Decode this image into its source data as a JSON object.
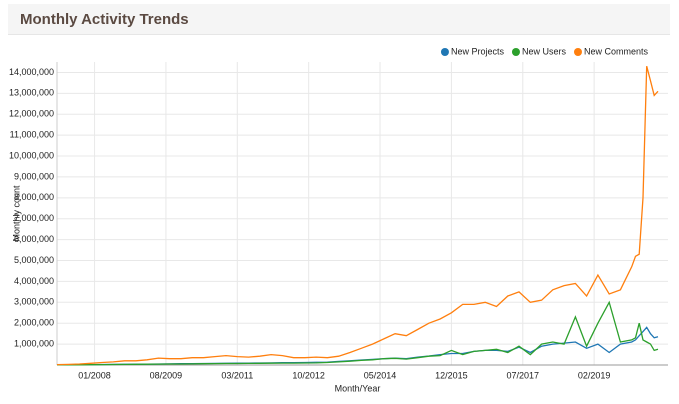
{
  "chart_data": {
    "type": "line",
    "title": "Monthly Activity Trends",
    "x_label": "Month/Year",
    "y_label": "Monthly count",
    "grid": true,
    "legend": "top-right",
    "x": [
      "03/2007",
      "06/2007",
      "09/2007",
      "12/2007",
      "03/2008",
      "06/2008",
      "09/2008",
      "12/2008",
      "03/2009",
      "06/2009",
      "09/2009",
      "12/2009",
      "03/2010",
      "06/2010",
      "09/2010",
      "12/2010",
      "03/2011",
      "06/2011",
      "09/2011",
      "12/2011",
      "03/2012",
      "06/2012",
      "09/2012",
      "12/2012",
      "03/2013",
      "06/2013",
      "09/2013",
      "12/2013",
      "03/2014",
      "06/2014",
      "09/2014",
      "12/2014",
      "03/2015",
      "06/2015",
      "09/2015",
      "12/2015",
      "03/2016",
      "06/2016",
      "09/2016",
      "12/2016",
      "03/2017",
      "06/2017",
      "09/2017",
      "12/2017",
      "03/2018",
      "06/2018",
      "09/2018",
      "12/2018",
      "03/2019",
      "06/2019",
      "09/2019",
      "12/2019",
      "01/2020",
      "02/2020",
      "03/2020",
      "04/2020",
      "05/2020",
      "06/2020",
      "07/2020"
    ],
    "xlim": [
      "03/2007",
      "07/2020"
    ],
    "xticks": [
      "01/2008",
      "08/2009",
      "03/2011",
      "10/2012",
      "05/2014",
      "12/2015",
      "07/2017",
      "02/2019"
    ],
    "ylim": [
      0,
      14500000
    ],
    "yticks": [
      {
        "value": 1000000,
        "label": "1,000,000"
      },
      {
        "value": 2000000,
        "label": "2,000,000"
      },
      {
        "value": 3000000,
        "label": "3,000,000"
      },
      {
        "value": 4000000,
        "label": "4,000,000"
      },
      {
        "value": 5000000,
        "label": "5,000,000"
      },
      {
        "value": 6000000,
        "label": "6,000,000"
      },
      {
        "value": 7000000,
        "label": "7,000,000"
      },
      {
        "value": 8000000,
        "label": "8,000,000"
      },
      {
        "value": 9000000,
        "label": "9,000,000"
      },
      {
        "value": 10000000,
        "label": "10,000,000"
      },
      {
        "value": 11000000,
        "label": "11,000,000"
      },
      {
        "value": 12000000,
        "label": "12,000,000"
      },
      {
        "value": 13000000,
        "label": "13,000,000"
      },
      {
        "value": 14000000,
        "label": "14,000,000"
      }
    ],
    "series": [
      {
        "name": "New Projects",
        "color": "#1f77b4",
        "values": [
          5000,
          8000,
          12000,
          18000,
          25000,
          30000,
          35000,
          40000,
          45000,
          50000,
          55000,
          60000,
          65000,
          70000,
          75000,
          80000,
          85000,
          90000,
          95000,
          100000,
          110000,
          110000,
          120000,
          130000,
          140000,
          170000,
          200000,
          240000,
          270000,
          300000,
          330000,
          300000,
          380000,
          430000,
          500000,
          550000,
          550000,
          650000,
          700000,
          700000,
          650000,
          850000,
          600000,
          900000,
          1000000,
          1050000,
          1100000,
          800000,
          1000000,
          600000,
          1000000,
          1100000,
          1200000,
          1400000,
          1600000,
          1800000,
          1500000,
          1300000,
          1350000
        ]
      },
      {
        "name": "New Users",
        "color": "#2ca02c",
        "values": [
          5000,
          8000,
          10000,
          15000,
          20000,
          25000,
          30000,
          35000,
          40000,
          45000,
          50000,
          50000,
          55000,
          60000,
          65000,
          70000,
          70000,
          75000,
          80000,
          85000,
          90000,
          90000,
          95000,
          100000,
          120000,
          150000,
          180000,
          220000,
          250000,
          300000,
          320000,
          280000,
          350000,
          420000,
          450000,
          700000,
          500000,
          650000,
          700000,
          750000,
          600000,
          900000,
          500000,
          1000000,
          1100000,
          1000000,
          2300000,
          900000,
          2000000,
          3000000,
          1100000,
          1200000,
          1300000,
          2000000,
          1200000,
          1100000,
          1000000,
          700000,
          750000
        ]
      },
      {
        "name": "New Comments",
        "color": "#ff7f0e",
        "values": [
          20000,
          30000,
          50000,
          80000,
          120000,
          150000,
          200000,
          200000,
          250000,
          330000,
          300000,
          300000,
          350000,
          350000,
          400000,
          450000,
          400000,
          380000,
          420000,
          500000,
          450000,
          350000,
          350000,
          380000,
          350000,
          420000,
          600000,
          800000,
          1000000,
          1250000,
          1500000,
          1400000,
          1700000,
          2000000,
          2200000,
          2500000,
          2900000,
          2900000,
          3000000,
          2800000,
          3300000,
          3500000,
          3000000,
          3100000,
          3600000,
          3800000,
          3900000,
          3300000,
          4300000,
          3400000,
          3600000,
          4700000,
          5200000,
          5300000,
          8000000,
          14300000,
          13600000,
          12900000,
          13100000
        ]
      }
    ]
  }
}
